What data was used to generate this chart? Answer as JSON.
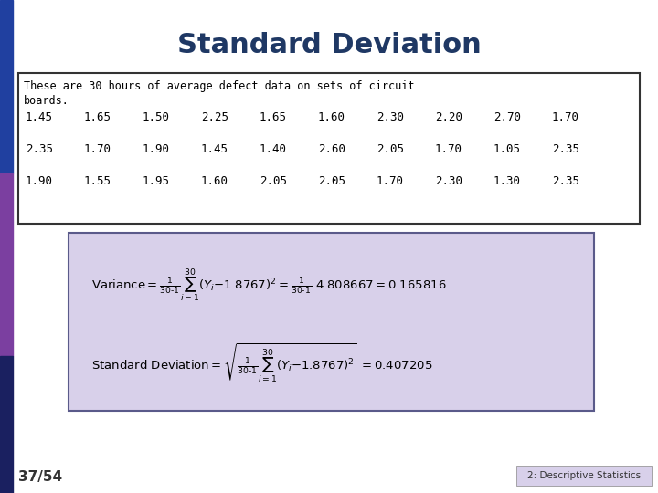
{
  "title": "Standard Deviation",
  "title_color": "#1F3864",
  "title_fontsize": 22,
  "bg_color": "#FFFFFF",
  "left_bar_top_color": "#2040A0",
  "left_bar_mid_color": "#7B3FA0",
  "left_bar_bot_color": "#1A2060",
  "description_text_line1": "These are 30 hours of average defect data on sets of circuit",
  "description_text_line2": "boards.",
  "data_rows": [
    [
      "1.45",
      "1.65",
      "1.50",
      "2.25",
      "1.65",
      "1.60",
      "2.30",
      "2.20",
      "2.70",
      "1.70"
    ],
    [
      "2.35",
      "1.70",
      "1.90",
      "1.45",
      "1.40",
      "2.60",
      "2.05",
      "1.70",
      "1.05",
      "2.35"
    ],
    [
      "1.90",
      "1.55",
      "1.95",
      "1.60",
      "2.05",
      "2.05",
      "1.70",
      "2.30",
      "1.30",
      "2.35"
    ]
  ],
  "formula_box_color": "#D8D0EA",
  "formula_box_border": "#5A5A8A",
  "data_box_border": "#333333",
  "footer_left": "37/54",
  "footer_right": "2: Descriptive Statistics",
  "footer_color": "#333333",
  "footer_right_bg": "#D8D0EA"
}
